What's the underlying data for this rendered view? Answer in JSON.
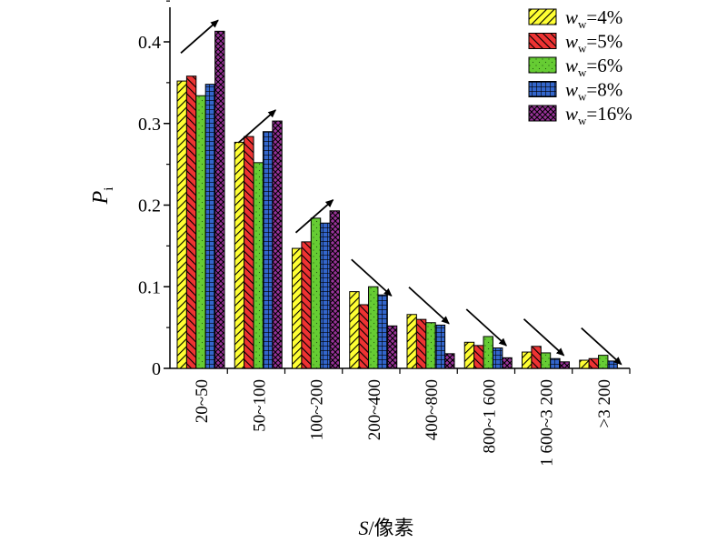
{
  "chart_data": {
    "type": "bar",
    "title": "",
    "xlabel_italic": "S",
    "xlabel_rest": "/像素",
    "ylabel_main": "P",
    "ylabel_sub": "i",
    "ylim": [
      0,
      0.45
    ],
    "yticks": [
      "0",
      "0.1",
      "0.2",
      "0.3",
      "0.4"
    ],
    "ytick_values": [
      0,
      0.1,
      0.2,
      0.3,
      0.4
    ],
    "categories": [
      "20~50",
      "50~100",
      "100~200",
      "200~400",
      "400~800",
      "800~1 600",
      "1 600~3 200",
      ">3 200"
    ],
    "series": [
      {
        "name": "ww=4%",
        "legend_var": "w",
        "legend_sub": "w",
        "legend_val": "=4%",
        "color": "#FFFF33",
        "pattern": "hatch-right",
        "values": [
          0.352,
          0.277,
          0.147,
          0.094,
          0.066,
          0.032,
          0.02,
          0.01
        ]
      },
      {
        "name": "ww=5%",
        "legend_var": "w",
        "legend_sub": "w",
        "legend_val": "=5%",
        "color": "#EE3333",
        "pattern": "hatch-left",
        "values": [
          0.358,
          0.284,
          0.155,
          0.078,
          0.06,
          0.028,
          0.027,
          0.012
        ]
      },
      {
        "name": "ww=6%",
        "legend_var": "w",
        "legend_sub": "w",
        "legend_val": "=6%",
        "color": "#66CC33",
        "pattern": "dots",
        "values": [
          0.334,
          0.252,
          0.184,
          0.1,
          0.056,
          0.039,
          0.019,
          0.016
        ]
      },
      {
        "name": "ww=8%",
        "legend_var": "w",
        "legend_sub": "w",
        "legend_val": "=8%",
        "color": "#3366CC",
        "pattern": "grid",
        "values": [
          0.348,
          0.29,
          0.178,
          0.09,
          0.053,
          0.025,
          0.012,
          0.009
        ]
      },
      {
        "name": "ww=16%",
        "legend_var": "w",
        "legend_sub": "w",
        "legend_val": "=16%",
        "color": "#993399",
        "pattern": "crosshatch",
        "values": [
          0.413,
          0.303,
          0.193,
          0.052,
          0.018,
          0.013,
          0.008,
          0.0
        ]
      }
    ],
    "trend_arrows": [
      "up",
      "up",
      "up",
      "down",
      "down",
      "down",
      "down",
      "down"
    ],
    "legend_position": "top-right",
    "grid": false
  }
}
